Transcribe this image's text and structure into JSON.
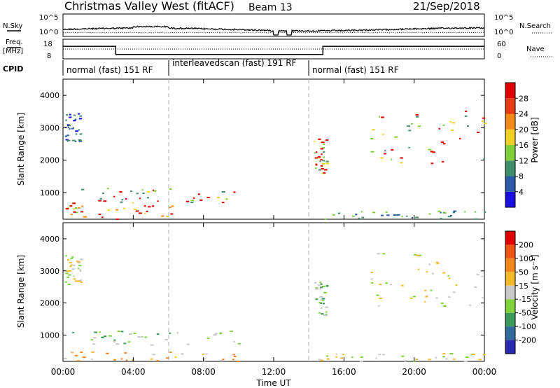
{
  "header": {
    "station": "Christmas Valley West (fitACF)",
    "beam": "Beam 13",
    "date": "21/Sep/2018"
  },
  "summary": {
    "nsky_label": "N.Sky",
    "nsearch_label": "N.Search",
    "noise_ticks": [
      "10^5",
      "10^0"
    ],
    "freq_label_1": "Freq.",
    "freq_label_2": "[MHz]",
    "freq_ticks": [
      "18",
      "8"
    ],
    "nave_ticks": [
      "60",
      "0"
    ],
    "nave_label": "Nave",
    "cpid_label": "CPID",
    "cpid_segments": [
      {
        "label": "normal (fast) 151 RF",
        "start_h": 0,
        "end_h": 6
      },
      {
        "label": "interleavedscan (fast) 191 RF",
        "start_h": 6,
        "end_h": 14
      },
      {
        "label": "normal (fast) 151 RF",
        "start_h": 14,
        "end_h": 24
      }
    ],
    "freq_mhz_profile": [
      [
        0,
        14.5
      ],
      [
        3,
        14.5
      ],
      [
        3,
        10
      ],
      [
        14.8,
        10
      ],
      [
        14.8,
        14.5
      ],
      [
        24,
        14.5
      ]
    ],
    "data_gaps_h": [
      [
        12.0,
        12.25
      ],
      [
        12.75,
        13.0
      ]
    ]
  },
  "chart_data": [
    {
      "type": "heatmap",
      "panel": "power",
      "ylabel": "Slant Range [km]",
      "xlim": [
        0,
        24
      ],
      "ylim": [
        180,
        4500
      ],
      "yticks": [
        1000,
        2000,
        3000,
        4000
      ],
      "colorbar_label": "Power [dB]",
      "colorbar_ticks": [
        "28",
        "24",
        "20",
        "16",
        "12",
        "8",
        "4"
      ],
      "colorbar_colors": [
        "#1a0fe0",
        "#2a5aa8",
        "#3f8f6a",
        "#7fcf3a",
        "#f2d025",
        "#f28a18",
        "#e63c14",
        "#e00000"
      ],
      "scatter_regions": [
        {
          "t": [
            0.1,
            1.0
          ],
          "r": [
            2600,
            3500
          ],
          "level": 1
        },
        {
          "t": [
            0.0,
            6.2
          ],
          "r": [
            200,
            700
          ],
          "level": 4
        },
        {
          "t": [
            1.0,
            10.0
          ],
          "r": [
            700,
            1150
          ],
          "level": 3
        },
        {
          "t": [
            14.3,
            15.0
          ],
          "r": [
            1600,
            2700
          ],
          "level": 3
        },
        {
          "t": [
            14.5,
            24
          ],
          "r": [
            200,
            450
          ],
          "level": 2
        },
        {
          "t": [
            17.5,
            24
          ],
          "r": [
            1900,
            3600
          ],
          "level": 3
        }
      ]
    },
    {
      "type": "heatmap",
      "panel": "velocity",
      "ylabel": "Slant Range [km]",
      "xlim": [
        0,
        24
      ],
      "ylim": [
        180,
        4500
      ],
      "yticks": [
        1000,
        2000,
        3000,
        4000
      ],
      "colorbar_label": "Velocity [m s⁻¹]",
      "colorbar_ticks": [
        "200",
        "100",
        "50",
        "15",
        "-15",
        "-50",
        "-100",
        "-200"
      ],
      "colorbar_colors": [
        "#2a2ab0",
        "#2f6a9a",
        "#3a9a5a",
        "#7ed23a",
        "#c8c8c8",
        "#f2b928",
        "#f2861a",
        "#ee5512",
        "#e00000"
      ],
      "scatter_regions": [
        {
          "t": [
            0.1,
            1.0
          ],
          "r": [
            2600,
            3500
          ],
          "level": 4
        },
        {
          "t": [
            0.0,
            10.0
          ],
          "r": [
            200,
            500
          ],
          "level": 5
        },
        {
          "t": [
            0.5,
            10.0
          ],
          "r": [
            700,
            1150
          ],
          "level": 3
        },
        {
          "t": [
            14.3,
            15.0
          ],
          "r": [
            1600,
            2700
          ],
          "level": 3
        },
        {
          "t": [
            14.5,
            24
          ],
          "r": [
            200,
            450
          ],
          "level": 4
        },
        {
          "t": [
            17.5,
            24
          ],
          "r": [
            1900,
            3600
          ],
          "level": 4
        }
      ]
    }
  ],
  "xaxis": {
    "label": "Time UT",
    "ticks": [
      "00:00",
      "04:00",
      "08:00",
      "12:00",
      "16:00",
      "20:00",
      "00:00"
    ],
    "tick_hours": [
      0,
      4,
      8,
      12,
      16,
      20,
      24
    ]
  }
}
